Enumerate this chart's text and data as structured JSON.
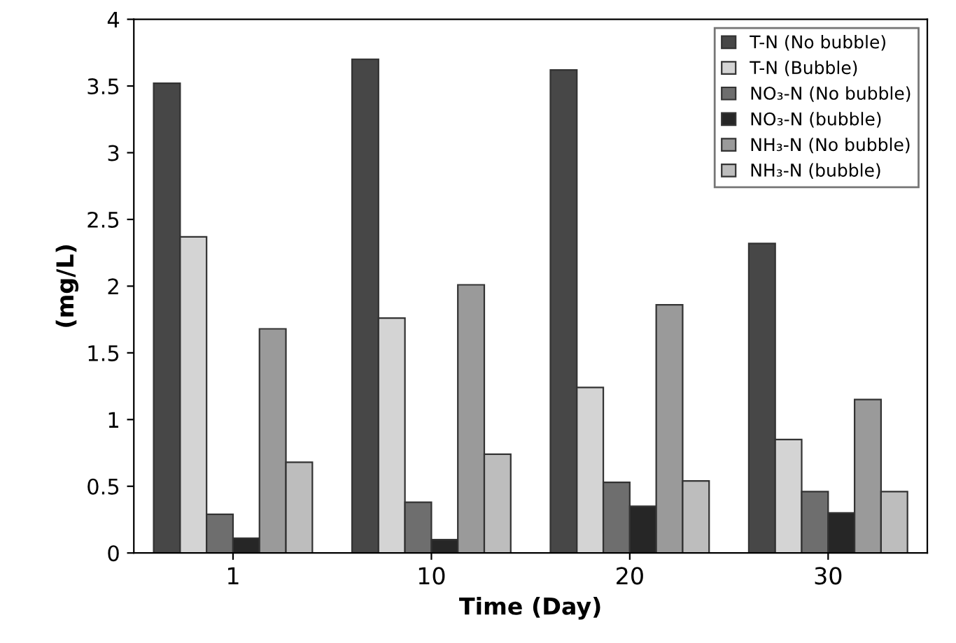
{
  "chart_data": {
    "type": "bar",
    "xlabel": "Time (Day)",
    "ylabel": "(mg/L)",
    "categories": [
      "1",
      "10",
      "20",
      "30"
    ],
    "series": [
      {
        "name": "T-N (No bubble)",
        "color": "#474747",
        "values": [
          3.52,
          3.7,
          3.62,
          2.32
        ]
      },
      {
        "name": "T-N (Bubble)",
        "color": "#d4d4d4",
        "values": [
          2.37,
          1.76,
          1.24,
          0.85
        ]
      },
      {
        "name": "NO₃-N (No bubble)",
        "color": "#6e6e6e",
        "values": [
          0.29,
          0.38,
          0.53,
          0.46
        ]
      },
      {
        "name": "NO₃-N (bubble)",
        "color": "#262626",
        "values": [
          0.11,
          0.1,
          0.35,
          0.3
        ]
      },
      {
        "name": "NH₃-N (No bubble)",
        "color": "#9a9a9a",
        "values": [
          1.68,
          2.01,
          1.86,
          1.15
        ]
      },
      {
        "name": "NH₃-N (bubble)",
        "color": "#bdbdbd",
        "values": [
          0.68,
          0.74,
          0.54,
          0.46
        ]
      }
    ],
    "ylim": [
      0,
      4
    ],
    "yticks": [
      0,
      0.5,
      1,
      1.5,
      2,
      2.5,
      3,
      3.5,
      4
    ],
    "grid": false,
    "legend": "top right"
  }
}
